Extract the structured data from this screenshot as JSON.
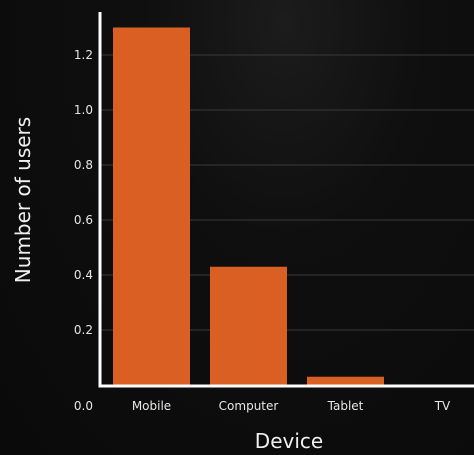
{
  "chart_data": {
    "type": "bar",
    "categories": [
      "Mobile",
      "Computer",
      "Tablet",
      "TV"
    ],
    "values": [
      1.3,
      0.43,
      0.03,
      0.0
    ],
    "title": "",
    "xlabel": "Device",
    "ylabel": "Number of users",
    "yticks": [
      0.0,
      0.2,
      0.4,
      0.6,
      0.8,
      1.0,
      1.2
    ],
    "ytick_labels": [
      "0.0",
      "0.2",
      "0.4",
      "0.6",
      "0.8",
      "1.0",
      "1.2"
    ],
    "ylim": [
      0,
      1.35
    ],
    "grid": "horizontal",
    "colors": {
      "bar": "#d95f23",
      "axis": "#ffffff",
      "grid": "#3a3a3a",
      "text": "#e6e6e6",
      "background": "#0b0b0b"
    }
  }
}
